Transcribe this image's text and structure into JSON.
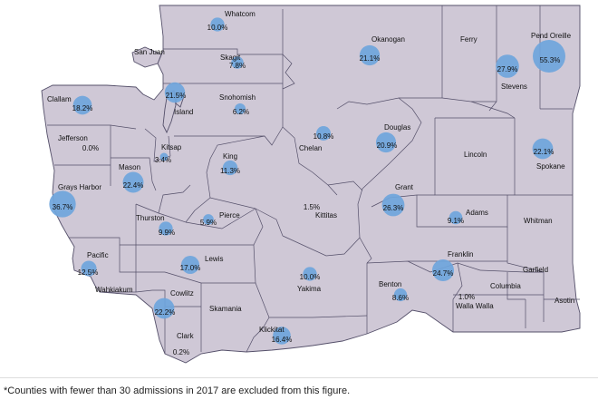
{
  "colors": {
    "state_fill": "#cfc8d6",
    "border": "#55506a",
    "bubble": "#6fa5dc"
  },
  "islands": [
    {
      "name": "San Juan"
    },
    {
      "name": "Island"
    }
  ],
  "counties": [
    {
      "name": "Whatcom",
      "value": "10.0%",
      "pct": 10.0
    },
    {
      "name": "Skagit",
      "value": "7.8%",
      "pct": 7.8
    },
    {
      "name": "Okanogan",
      "value": "21.1%",
      "pct": 21.1
    },
    {
      "name": "Ferry",
      "value": "",
      "pct": null
    },
    {
      "name": "Stevens",
      "value": "27.9%",
      "pct": 27.9
    },
    {
      "name": "Pend Oreille",
      "value": "55.3%",
      "pct": 55.3
    },
    {
      "name": "Clallam",
      "value": "18.2%",
      "pct": 18.2
    },
    {
      "name": "Island",
      "value": "21.5%",
      "pct": 21.5
    },
    {
      "name": "Snohomish",
      "value": "6.2%",
      "pct": 6.2
    },
    {
      "name": "Jefferson",
      "value": "0.0%",
      "pct": 0.0
    },
    {
      "name": "Kitsap",
      "value": "3.4%",
      "pct": 3.4
    },
    {
      "name": "King",
      "value": "11.3%",
      "pct": 11.3
    },
    {
      "name": "Chelan",
      "value": "10.8%",
      "pct": 10.8
    },
    {
      "name": "Douglas",
      "value": "20.9%",
      "pct": 20.9
    },
    {
      "name": "Lincoln",
      "value": "",
      "pct": null
    },
    {
      "name": "Spokane",
      "value": "22.1%",
      "pct": 22.1
    },
    {
      "name": "Mason",
      "value": "22.4%",
      "pct": 22.4
    },
    {
      "name": "Grays Harbor",
      "value": "36.7%",
      "pct": 36.7
    },
    {
      "name": "Thurston",
      "value": "9.9%",
      "pct": 9.9
    },
    {
      "name": "Pierce",
      "value": "5.9%",
      "pct": 5.9
    },
    {
      "name": "Kittitas",
      "value": "1.5%",
      "pct": 1.5
    },
    {
      "name": "Grant",
      "value": "26.3%",
      "pct": 26.3
    },
    {
      "name": "Adams",
      "value": "9.1%",
      "pct": 9.1
    },
    {
      "name": "Whitman",
      "value": "",
      "pct": null
    },
    {
      "name": "Pacific",
      "value": "12.5%",
      "pct": 12.5
    },
    {
      "name": "Lewis",
      "value": "17.0%",
      "pct": 17.0
    },
    {
      "name": "Yakima",
      "value": "10.0%",
      "pct": 10.0
    },
    {
      "name": "Franklin",
      "value": "24.7%",
      "pct": 24.7
    },
    {
      "name": "Garfield",
      "value": "",
      "pct": null
    },
    {
      "name": "Wahkiakum",
      "value": "",
      "pct": null
    },
    {
      "name": "Cowlitz",
      "value": "22.2%",
      "pct": 22.2
    },
    {
      "name": "Skamania",
      "value": "",
      "pct": null
    },
    {
      "name": "Benton",
      "value": "8.6%",
      "pct": 8.6
    },
    {
      "name": "Walla Walla",
      "value": "1.0%",
      "pct": 1.0
    },
    {
      "name": "Columbia",
      "value": "",
      "pct": null
    },
    {
      "name": "Asotin",
      "value": "",
      "pct": null
    },
    {
      "name": "Clark",
      "value": "0.2%",
      "pct": 0.2
    },
    {
      "name": "Klickitat",
      "value": "16.4%",
      "pct": 16.4
    }
  ],
  "footnote": "*Counties with fewer than 30 admissions in 2017 are excluded from this figure."
}
